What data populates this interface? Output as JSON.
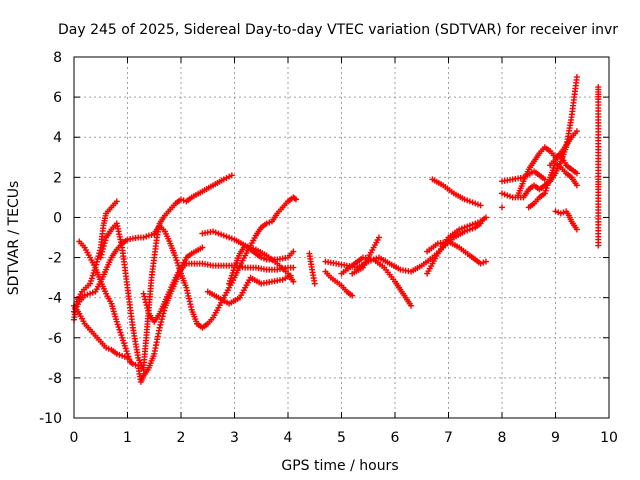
{
  "chart_data": {
    "type": "scatter",
    "title": "Day 245 of 2025, Sidereal Day-to-day VTEC variation (SDTVAR) for receiver invr",
    "xlabel": "GPS time / hours",
    "ylabel": "SDTVAR / TECUs",
    "xlim": [
      0,
      10
    ],
    "ylim": [
      -10,
      8
    ],
    "xticks": [
      "0",
      "1",
      "2",
      "3",
      "4",
      "5",
      "6",
      "7",
      "8",
      "9",
      "10"
    ],
    "yticks": [
      "-10",
      "-8",
      "-6",
      "-4",
      "-2",
      "0",
      "2",
      "4",
      "6",
      "8"
    ],
    "grid": true,
    "marker": "plus",
    "color": "#ff0000",
    "tracks": [
      [
        [
          0.0,
          -4.7
        ],
        [
          0.1,
          -4.2
        ],
        [
          0.2,
          -3.9
        ],
        [
          0.3,
          -3.8
        ],
        [
          0.4,
          -3.7
        ],
        [
          0.5,
          -3.2
        ],
        [
          0.6,
          -2.6
        ],
        [
          0.7,
          -2.0
        ],
        [
          0.8,
          -1.6
        ],
        [
          0.9,
          -1.3
        ],
        [
          1.0,
          -1.1
        ],
        [
          1.1,
          -1.05
        ],
        [
          1.2,
          -1.0
        ],
        [
          1.3,
          -1.0
        ],
        [
          1.4,
          -0.9
        ],
        [
          1.5,
          -0.85
        ]
      ],
      [
        [
          0.0,
          -5.1
        ],
        [
          0.05,
          -4.2
        ],
        [
          0.15,
          -3.7
        ],
        [
          0.3,
          -3.3
        ],
        [
          0.4,
          -2.5
        ],
        [
          0.5,
          -1.5
        ],
        [
          0.55,
          -0.4
        ],
        [
          0.6,
          0.2
        ],
        [
          0.7,
          0.5
        ],
        [
          0.8,
          0.8
        ]
      ],
      [
        [
          0.1,
          -1.2
        ],
        [
          0.2,
          -1.5
        ],
        [
          0.3,
          -2.0
        ],
        [
          0.4,
          -2.5
        ],
        [
          0.5,
          -3.2
        ],
        [
          0.6,
          -3.8
        ],
        [
          0.7,
          -4.3
        ],
        [
          0.8,
          -5.2
        ],
        [
          0.9,
          -6.0
        ],
        [
          1.0,
          -6.8
        ],
        [
          1.05,
          -7.2
        ]
      ],
      [
        [
          0.0,
          -4.4
        ],
        [
          0.1,
          -4.8
        ],
        [
          0.2,
          -5.3
        ],
        [
          0.3,
          -5.6
        ],
        [
          0.4,
          -5.9
        ],
        [
          0.5,
          -6.2
        ],
        [
          0.6,
          -6.5
        ],
        [
          0.7,
          -6.6
        ],
        [
          0.8,
          -6.8
        ],
        [
          0.9,
          -6.9
        ],
        [
          1.0,
          -7.0
        ]
      ],
      [
        [
          0.5,
          -2.0
        ],
        [
          0.6,
          -1.0
        ],
        [
          0.7,
          -0.6
        ],
        [
          0.8,
          -0.3
        ],
        [
          0.9,
          -1.5
        ],
        [
          1.0,
          -3.5
        ],
        [
          1.1,
          -5.5
        ],
        [
          1.2,
          -7.0
        ],
        [
          1.3,
          -7.6
        ]
      ],
      [
        [
          1.05,
          -7.2
        ],
        [
          1.1,
          -7.3
        ],
        [
          1.2,
          -7.4
        ],
        [
          1.25,
          -8.2
        ],
        [
          1.3,
          -7.9
        ],
        [
          1.4,
          -7.5
        ],
        [
          1.5,
          -6.8
        ],
        [
          1.6,
          -5.5
        ],
        [
          1.7,
          -4.5
        ],
        [
          1.8,
          -3.8
        ],
        [
          1.9,
          -3.2
        ],
        [
          2.0,
          -2.6
        ],
        [
          2.1,
          -2.3
        ],
        [
          2.2,
          -2.3
        ],
        [
          2.4,
          -2.3
        ],
        [
          2.6,
          -2.4
        ],
        [
          2.8,
          -2.4
        ],
        [
          3.0,
          -2.4
        ],
        [
          3.2,
          -2.5
        ],
        [
          3.4,
          -2.5
        ],
        [
          3.6,
          -2.6
        ],
        [
          3.8,
          -2.6
        ],
        [
          4.0,
          -2.5
        ],
        [
          4.1,
          -2.5
        ]
      ],
      [
        [
          1.3,
          -7.5
        ],
        [
          1.35,
          -6.0
        ],
        [
          1.4,
          -4.5
        ],
        [
          1.45,
          -3.0
        ],
        [
          1.5,
          -2.0
        ],
        [
          1.55,
          -1.0
        ],
        [
          1.6,
          -0.3
        ],
        [
          1.7,
          0.1
        ],
        [
          1.8,
          0.4
        ],
        [
          1.9,
          0.7
        ],
        [
          2.0,
          0.9
        ],
        [
          2.1,
          0.8
        ],
        [
          2.2,
          1.0
        ],
        [
          2.4,
          1.3
        ],
        [
          2.6,
          1.6
        ],
        [
          2.8,
          1.9
        ],
        [
          2.95,
          2.1
        ]
      ],
      [
        [
          1.5,
          -0.8
        ],
        [
          1.6,
          -0.4
        ],
        [
          1.7,
          -0.7
        ],
        [
          1.8,
          -1.3
        ],
        [
          1.9,
          -2.0
        ],
        [
          2.0,
          -2.8
        ],
        [
          2.1,
          -3.5
        ],
        [
          2.2,
          -4.6
        ],
        [
          2.3,
          -5.3
        ],
        [
          2.4,
          -5.5
        ],
        [
          2.5,
          -5.3
        ],
        [
          2.6,
          -5.0
        ],
        [
          2.7,
          -4.5
        ],
        [
          2.8,
          -4.0
        ],
        [
          2.9,
          -3.5
        ],
        [
          3.0,
          -3.0
        ],
        [
          3.1,
          -2.4
        ],
        [
          3.2,
          -1.9
        ],
        [
          3.3,
          -1.4
        ],
        [
          3.4,
          -0.9
        ],
        [
          3.5,
          -0.5
        ],
        [
          3.6,
          -0.3
        ],
        [
          3.7,
          -0.2
        ],
        [
          3.8,
          0.2
        ],
        [
          3.9,
          0.5
        ],
        [
          4.0,
          0.8
        ],
        [
          4.1,
          1.0
        ],
        [
          4.15,
          0.9
        ]
      ],
      [
        [
          1.3,
          -3.8
        ],
        [
          1.4,
          -4.8
        ],
        [
          1.5,
          -5.2
        ],
        [
          1.6,
          -4.8
        ],
        [
          1.7,
          -4.2
        ],
        [
          1.8,
          -3.6
        ],
        [
          1.9,
          -3.0
        ],
        [
          2.0,
          -2.5
        ],
        [
          2.1,
          -2.0
        ],
        [
          2.2,
          -1.8
        ],
        [
          2.4,
          -1.5
        ]
      ],
      [
        [
          2.4,
          -0.8
        ],
        [
          2.6,
          -0.7
        ],
        [
          2.8,
          -0.9
        ],
        [
          3.0,
          -1.1
        ],
        [
          3.2,
          -1.4
        ],
        [
          3.4,
          -1.6
        ],
        [
          3.6,
          -1.9
        ],
        [
          3.8,
          -2.3
        ],
        [
          4.0,
          -2.8
        ],
        [
          4.1,
          -3.2
        ]
      ],
      [
        [
          2.5,
          -3.7
        ],
        [
          2.7,
          -4.0
        ],
        [
          2.9,
          -4.3
        ],
        [
          3.1,
          -4.0
        ],
        [
          3.2,
          -3.5
        ],
        [
          3.3,
          -3.0
        ],
        [
          3.5,
          -3.3
        ],
        [
          3.7,
          -3.2
        ],
        [
          3.9,
          -3.1
        ],
        [
          4.05,
          -2.9
        ]
      ],
      [
        [
          2.9,
          -3.3
        ],
        [
          3.0,
          -2.5
        ],
        [
          3.1,
          -1.8
        ],
        [
          3.2,
          -1.4
        ],
        [
          3.3,
          -1.6
        ],
        [
          3.4,
          -1.8
        ],
        [
          3.5,
          -2.0
        ],
        [
          3.6,
          -2.1
        ],
        [
          3.8,
          -2.1
        ],
        [
          4.0,
          -2.0
        ],
        [
          4.1,
          -1.7
        ]
      ],
      [
        [
          4.4,
          -1.8
        ],
        [
          4.45,
          -2.6
        ],
        [
          4.5,
          -3.3
        ]
      ],
      [
        [
          4.7,
          -2.2
        ],
        [
          4.9,
          -2.3
        ],
        [
          5.1,
          -2.4
        ],
        [
          5.3,
          -2.5
        ],
        [
          5.5,
          -2.2
        ],
        [
          5.7,
          -2.0
        ],
        [
          5.9,
          -2.3
        ],
        [
          6.1,
          -2.6
        ],
        [
          6.3,
          -2.7
        ],
        [
          6.5,
          -2.4
        ],
        [
          6.7,
          -2.0
        ],
        [
          6.9,
          -1.5
        ],
        [
          7.1,
          -1.0
        ],
        [
          7.3,
          -0.7
        ],
        [
          7.5,
          -0.5
        ],
        [
          7.6,
          -0.3
        ]
      ],
      [
        [
          4.7,
          -2.7
        ],
        [
          4.8,
          -3.0
        ],
        [
          5.0,
          -3.4
        ],
        [
          5.1,
          -3.7
        ],
        [
          5.2,
          -3.9
        ]
      ],
      [
        [
          5.0,
          -2.8
        ],
        [
          5.2,
          -2.4
        ],
        [
          5.3,
          -2.2
        ],
        [
          5.4,
          -2.0
        ],
        [
          5.6,
          -2.1
        ],
        [
          5.8,
          -2.5
        ],
        [
          6.0,
          -3.2
        ],
        [
          6.1,
          -3.6
        ],
        [
          6.2,
          -4.0
        ],
        [
          6.3,
          -4.4
        ]
      ],
      [
        [
          5.2,
          -2.8
        ],
        [
          5.4,
          -2.5
        ],
        [
          5.5,
          -2.0
        ],
        [
          5.6,
          -1.5
        ],
        [
          5.7,
          -1.0
        ]
      ],
      [
        [
          6.6,
          -2.8
        ],
        [
          6.8,
          -1.8
        ],
        [
          7.0,
          -1.0
        ],
        [
          7.2,
          -0.6
        ],
        [
          7.4,
          -0.4
        ],
        [
          7.6,
          -0.2
        ],
        [
          7.7,
          0.0
        ]
      ],
      [
        [
          6.6,
          -1.7
        ],
        [
          6.8,
          -1.3
        ],
        [
          7.0,
          -1.2
        ],
        [
          7.2,
          -1.5
        ],
        [
          7.4,
          -1.9
        ],
        [
          7.5,
          -2.1
        ],
        [
          7.6,
          -2.3
        ],
        [
          7.7,
          -2.2
        ]
      ],
      [
        [
          6.7,
          1.9
        ],
        [
          6.9,
          1.6
        ],
        [
          7.1,
          1.2
        ],
        [
          7.3,
          0.9
        ],
        [
          7.5,
          0.7
        ],
        [
          7.6,
          0.6
        ]
      ],
      [
        [
          8.0,
          1.8
        ],
        [
          8.2,
          1.9
        ],
        [
          8.4,
          2.0
        ],
        [
          8.6,
          2.3
        ],
        [
          8.7,
          2.1
        ],
        [
          8.8,
          1.9
        ]
      ],
      [
        [
          8.0,
          1.2
        ],
        [
          8.2,
          1.0
        ],
        [
          8.4,
          1.0
        ],
        [
          8.5,
          1.4
        ],
        [
          8.6,
          1.6
        ],
        [
          8.7,
          1.4
        ],
        [
          8.8,
          1.6
        ],
        [
          8.9,
          1.8
        ],
        [
          9.0,
          2.2
        ],
        [
          9.1,
          2.8
        ],
        [
          9.2,
          3.5
        ],
        [
          9.3,
          5.0
        ],
        [
          9.35,
          6.0
        ],
        [
          9.4,
          7.0
        ]
      ],
      [
        [
          8.3,
          1.1
        ],
        [
          8.4,
          1.8
        ],
        [
          8.5,
          2.4
        ],
        [
          8.6,
          2.8
        ],
        [
          8.7,
          3.2
        ],
        [
          8.8,
          3.5
        ],
        [
          8.9,
          3.3
        ],
        [
          9.0,
          3.0
        ],
        [
          9.1,
          3.2
        ],
        [
          9.2,
          3.6
        ],
        [
          9.3,
          4.0
        ],
        [
          9.4,
          4.3
        ]
      ],
      [
        [
          8.5,
          0.5
        ],
        [
          8.6,
          0.7
        ],
        [
          8.7,
          1.0
        ],
        [
          8.8,
          1.2
        ],
        [
          8.9,
          2.0
        ],
        [
          9.0,
          2.7
        ],
        [
          9.1,
          2.5
        ],
        [
          9.2,
          2.2
        ],
        [
          9.3,
          2.0
        ],
        [
          9.4,
          1.6
        ]
      ],
      [
        [
          8.0,
          0.5
        ]
      ],
      [
        [
          8.9,
          2.6
        ],
        [
          9.0,
          2.9
        ],
        [
          9.1,
          3.1
        ],
        [
          9.2,
          2.6
        ],
        [
          9.3,
          2.4
        ],
        [
          9.4,
          2.2
        ]
      ],
      [
        [
          9.0,
          0.3
        ],
        [
          9.1,
          0.2
        ],
        [
          9.2,
          0.3
        ],
        [
          9.25,
          0.1
        ],
        [
          9.3,
          -0.2
        ],
        [
          9.4,
          -0.6
        ]
      ],
      [
        [
          9.8,
          6.5
        ],
        [
          9.8,
          5.9
        ],
        [
          9.8,
          1.9
        ],
        [
          9.8,
          1.4
        ],
        [
          9.8,
          -1.4
        ]
      ]
    ]
  }
}
